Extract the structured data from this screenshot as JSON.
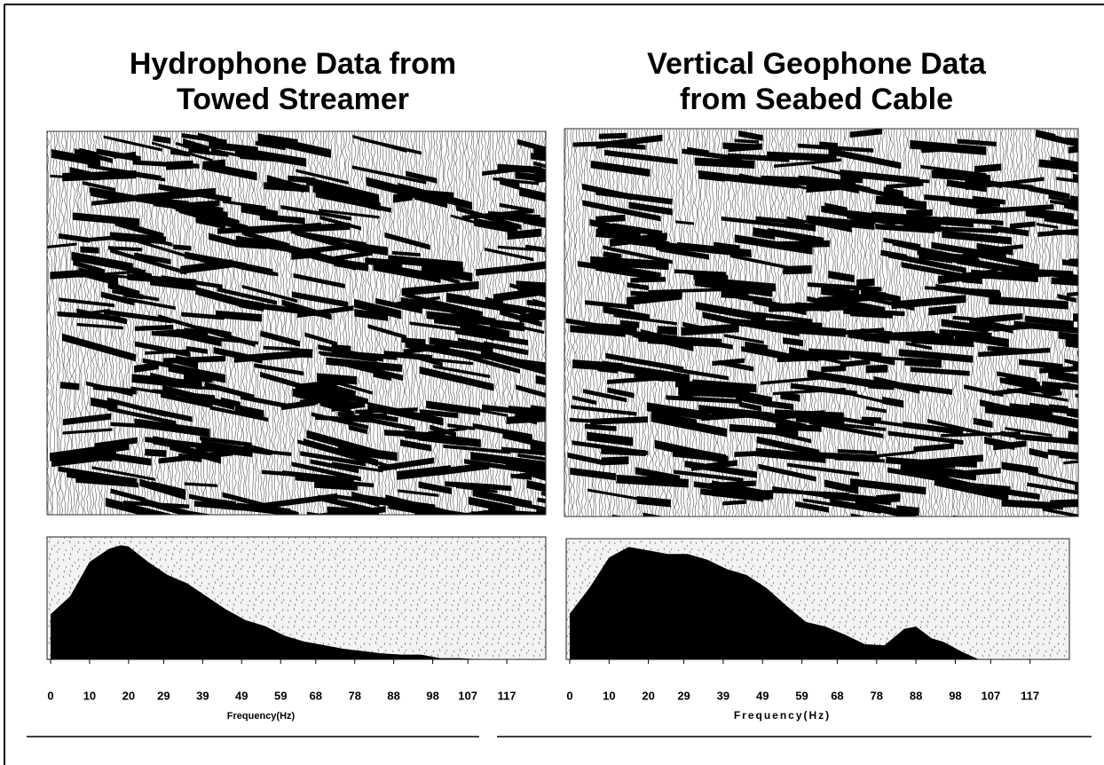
{
  "chart_data": [
    {
      "type": "area",
      "title": "Hydrophone Data from Towed Streamer",
      "xlabel": "Frequency(Hz)",
      "x": [
        0,
        5,
        10,
        15,
        18,
        20,
        25,
        30,
        35,
        40,
        45,
        50,
        55,
        60,
        65,
        70,
        75,
        80,
        85,
        90,
        95,
        100,
        105,
        110,
        127
      ],
      "values": [
        38,
        53,
        82,
        93,
        96,
        95,
        82,
        71,
        64,
        53,
        42,
        33,
        28,
        20,
        15,
        12,
        9,
        7,
        5,
        4,
        4,
        1,
        1,
        0,
        0
      ],
      "color": "#000000",
      "xlim": [
        0,
        127
      ],
      "ylim": [
        0,
        100
      ],
      "xticks": [
        0,
        10,
        20,
        29,
        39,
        49,
        59,
        68,
        78,
        88,
        98,
        107,
        117
      ]
    },
    {
      "type": "area",
      "title": "Vertical Geophone Data from Seabed Cable",
      "xlabel": "Frequency(Hz)",
      "x": [
        0,
        5,
        10,
        15,
        20,
        25,
        30,
        35,
        40,
        45,
        50,
        55,
        60,
        65,
        70,
        75,
        80,
        85,
        88,
        92,
        95,
        100,
        104,
        127
      ],
      "values": [
        39,
        61,
        87,
        96,
        93,
        90,
        90,
        85,
        77,
        72,
        61,
        46,
        32,
        28,
        21,
        13,
        12,
        26,
        28,
        18,
        15,
        6,
        0,
        0
      ],
      "color": "#000000",
      "xlim": [
        0,
        127
      ],
      "ylim": [
        0,
        100
      ],
      "xticks": [
        0,
        10,
        20,
        29,
        39,
        49,
        59,
        68,
        78,
        88,
        98,
        107,
        117
      ]
    }
  ]
}
